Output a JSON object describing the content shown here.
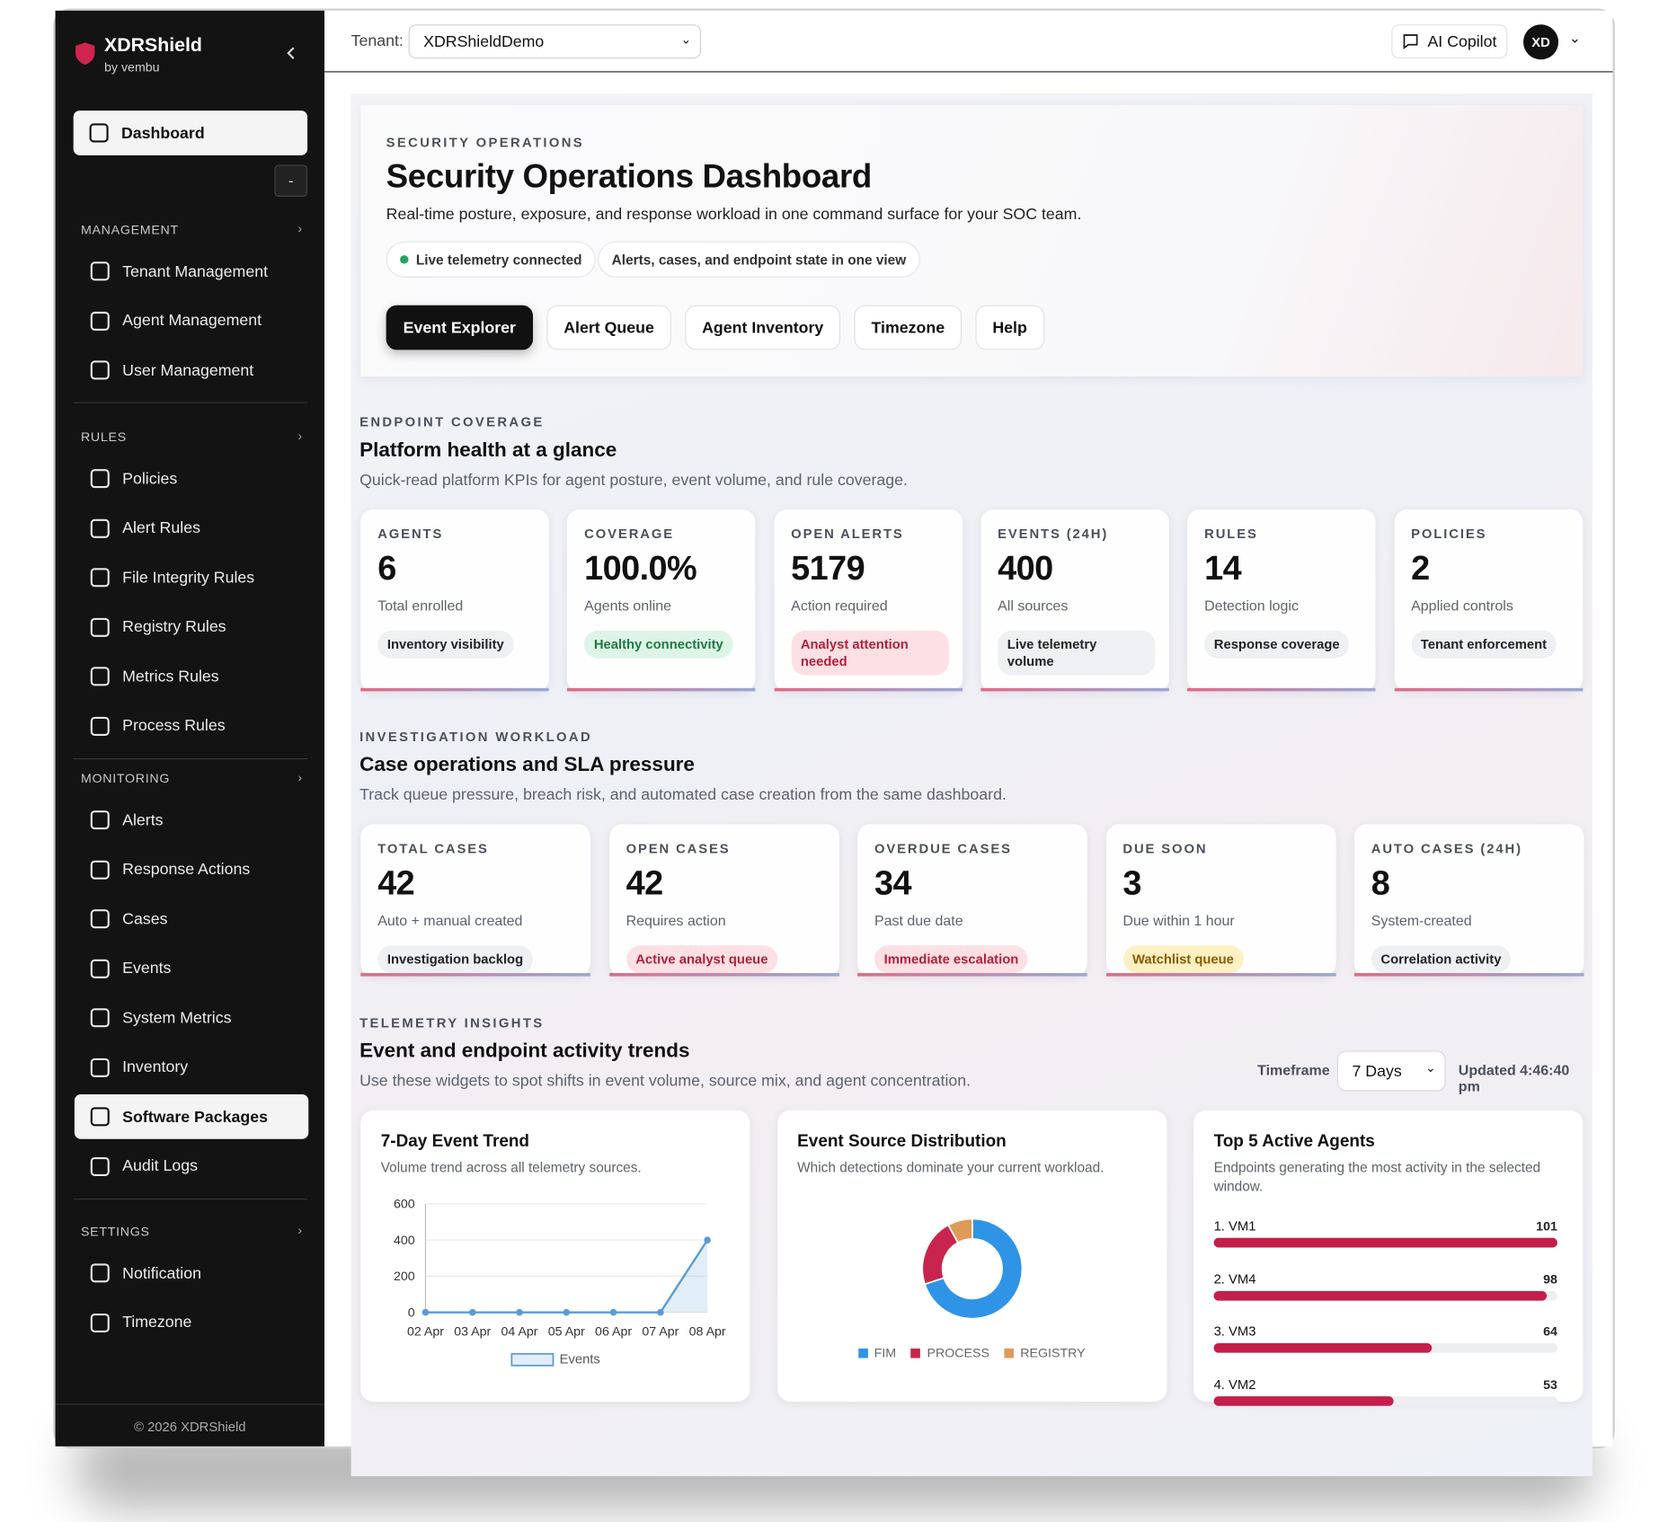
{
  "sidebar": {
    "brand": "XDRShield",
    "sub": "by vembu",
    "dashboard": "Dashboard",
    "collapse": "-",
    "sections": [
      {
        "title": "MANAGEMENT",
        "items": [
          {
            "label": "Tenant Management"
          },
          {
            "label": "Agent Management"
          },
          {
            "label": "User Management"
          }
        ]
      },
      {
        "title": "RULES",
        "items": [
          {
            "label": "Policies"
          },
          {
            "label": "Alert Rules"
          },
          {
            "label": "File Integrity Rules"
          },
          {
            "label": "Registry Rules"
          },
          {
            "label": "Metrics Rules"
          },
          {
            "label": "Process Rules"
          }
        ]
      },
      {
        "title": "MONITORING",
        "items": [
          {
            "label": "Alerts"
          },
          {
            "label": "Response Actions"
          },
          {
            "label": "Cases"
          },
          {
            "label": "Events"
          },
          {
            "label": "System Metrics"
          },
          {
            "label": "Inventory"
          },
          {
            "label": "Software Packages",
            "active": true
          },
          {
            "label": "Audit Logs"
          }
        ]
      },
      {
        "title": "SETTINGS",
        "items": [
          {
            "label": "Notification"
          },
          {
            "label": "Timezone"
          }
        ]
      }
    ],
    "footer": "© 2026 XDRShield"
  },
  "topbar": {
    "tenant_label": "Tenant:",
    "tenant": "XDRShieldDemo",
    "copilot": "AI Copilot",
    "avatar": "XD"
  },
  "hero": {
    "eyebrow": "SECURITY OPERATIONS",
    "title": "Security Operations Dashboard",
    "subtitle": "Real-time posture, exposure, and response workload in one command surface for your SOC team.",
    "badges": [
      "Live telemetry connected",
      "Alerts, cases, and endpoint state in one view"
    ],
    "buttons": [
      "Event Explorer",
      "Alert Queue",
      "Agent Inventory",
      "Timezone",
      "Help"
    ]
  },
  "coverage": {
    "eyebrow": "ENDPOINT COVERAGE",
    "title": "Platform health at a glance",
    "subtitle": "Quick-read platform KPIs for agent posture, event volume, and rule coverage.",
    "cards": [
      {
        "label": "AGENTS",
        "value": "6",
        "caption": "Total enrolled",
        "tag": "Inventory visibility",
        "tone": "neutral"
      },
      {
        "label": "COVERAGE",
        "value": "100.0%",
        "caption": "Agents online",
        "tag": "Healthy connectivity",
        "tone": "green"
      },
      {
        "label": "OPEN ALERTS",
        "value": "5179",
        "caption": "Action required",
        "tag": "Analyst attention needed",
        "tone": "red"
      },
      {
        "label": "EVENTS (24H)",
        "value": "400",
        "caption": "All sources",
        "tag": "Live telemetry volume",
        "tone": "neutral"
      },
      {
        "label": "RULES",
        "value": "14",
        "caption": "Detection logic",
        "tag": "Response coverage",
        "tone": "neutral"
      },
      {
        "label": "POLICIES",
        "value": "2",
        "caption": "Applied controls",
        "tag": "Tenant enforcement",
        "tone": "neutral"
      }
    ]
  },
  "workload": {
    "eyebrow": "INVESTIGATION WORKLOAD",
    "title": "Case operations and SLA pressure",
    "subtitle": "Track queue pressure, breach risk, and automated case creation from the same dashboard.",
    "cards": [
      {
        "label": "TOTAL CASES",
        "value": "42",
        "caption": "Auto + manual created",
        "tag": "Investigation backlog",
        "tone": "neutral"
      },
      {
        "label": "OPEN CASES",
        "value": "42",
        "caption": "Requires action",
        "tag": "Active analyst queue",
        "tone": "red"
      },
      {
        "label": "OVERDUE CASES",
        "value": "34",
        "caption": "Past due date",
        "tag": "Immediate escalation",
        "tone": "red"
      },
      {
        "label": "DUE SOON",
        "value": "3",
        "caption": "Due within 1 hour",
        "tag": "Watchlist queue",
        "tone": "yellow"
      },
      {
        "label": "AUTO CASES (24H)",
        "value": "8",
        "caption": "System-created",
        "tag": "Correlation activity",
        "tone": "neutral"
      }
    ]
  },
  "telemetry": {
    "eyebrow": "TELEMETRY INSIGHTS",
    "title": "Event and endpoint activity trends",
    "subtitle": "Use these widgets to spot shifts in event volume, source mix, and agent concentration.",
    "timeframe_label": "Timeframe",
    "timeframe": "7 Days",
    "updated": "Updated 4:46:40 pm"
  },
  "chart_data": [
    {
      "type": "line",
      "title": "7-Day Event Trend",
      "subtitle": "Volume trend across all telemetry sources.",
      "categories": [
        "02 Apr",
        "03 Apr",
        "04 Apr",
        "05 Apr",
        "06 Apr",
        "07 Apr",
        "08 Apr"
      ],
      "series": [
        {
          "name": "Events",
          "color": "#5b9bd5",
          "values": [
            0,
            0,
            0,
            0,
            0,
            0,
            400
          ]
        }
      ],
      "ylim": [
        0,
        600
      ],
      "yticks": [
        0,
        200,
        400,
        600
      ],
      "grid": true
    },
    {
      "type": "pie",
      "title": "Event Source Distribution",
      "subtitle": "Which detections dominate your current workload.",
      "categories": [
        "FIM",
        "PROCESS",
        "REGISTRY"
      ],
      "values": [
        280,
        88,
        32
      ],
      "colors": [
        "#2f94e6",
        "#c7254e",
        "#dd9b57"
      ],
      "donut": true
    },
    {
      "type": "bar",
      "title": "Top 5 Active Agents",
      "subtitle": "Endpoints generating the most activity in the selected window.",
      "categories": [
        "1. VM1",
        "2. VM4",
        "3. VM3",
        "4. VM2"
      ],
      "values": [
        101,
        98,
        64,
        53
      ],
      "xlim": [
        0,
        101
      ],
      "color": "#c41e4a",
      "orientation": "horizontal"
    }
  ]
}
